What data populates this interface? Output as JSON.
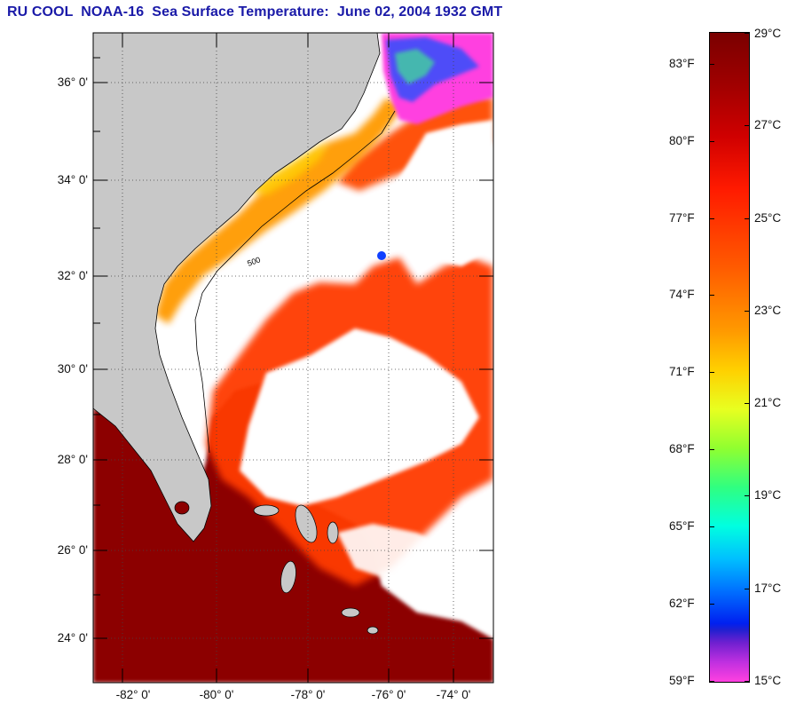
{
  "title": "RU COOL  NOAA-16  Sea Surface Temperature:  June 02, 2004 1932 GMT",
  "map": {
    "lat_labels": [
      "36° 0'",
      "34° 0'",
      "32° 0'",
      "30° 0'",
      "28° 0'",
      "26° 0'",
      "24° 0'"
    ],
    "lon_labels": [
      "-82° 0'",
      "-80° 0'",
      "-78° 0'",
      "-76° 0'",
      "-74° 0'"
    ],
    "isobath_label": "500",
    "colors": {
      "land": "#c8c8c8",
      "cloud": "#ffffff",
      "warm_water": "#8c0000",
      "gulf_stream": "#ff3a00",
      "shelf_water": "#ff9a00",
      "cold_water": "#ff40e0"
    }
  },
  "colorbar": {
    "fahrenheit_labels": [
      "83°F",
      "80°F",
      "77°F",
      "74°F",
      "71°F",
      "68°F",
      "65°F",
      "62°F",
      "59°F"
    ],
    "celsius_labels": [
      "29°C",
      "27°C",
      "25°C",
      "23°C",
      "21°C",
      "19°C",
      "17°C",
      "15°C"
    ],
    "range_c": [
      15,
      29
    ],
    "range_f": [
      59,
      84.2
    ]
  }
}
